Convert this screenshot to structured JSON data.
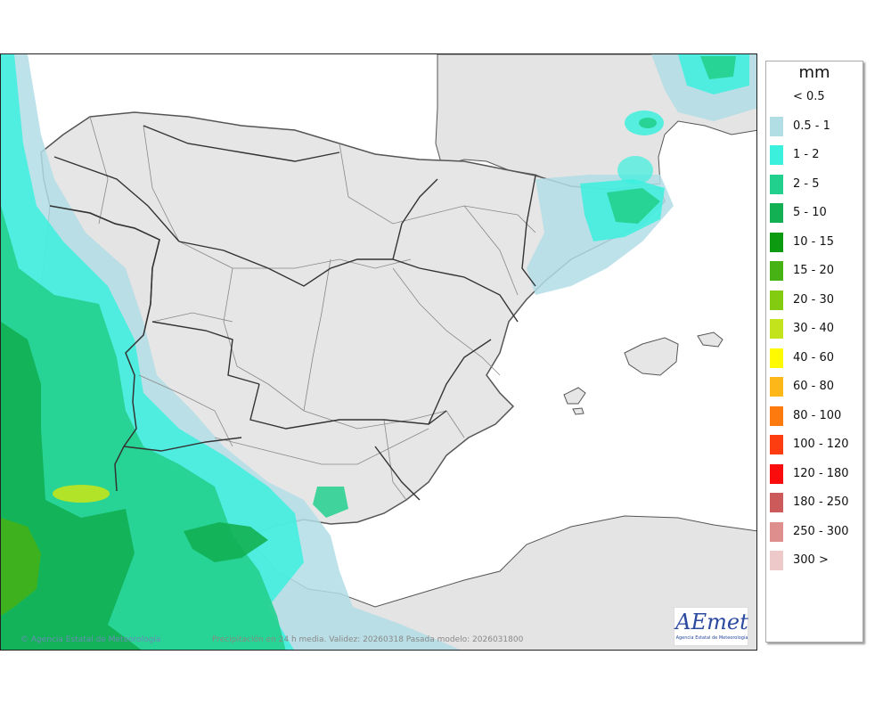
{
  "map": {
    "credit": "© Agencia Estatal de Meteorología",
    "caption": "Precipitación en 24 h media. Validez: 20260318 Pasada modelo: 2026031800",
    "logo": {
      "name": "AEmet",
      "subtitle": "Agencia Estatal de Meteorología"
    },
    "colors": {
      "land": "#e4e4e4",
      "sea": "#ffffff",
      "border": "#555555"
    }
  },
  "legend": {
    "title": "mm",
    "items": [
      {
        "label": "< 0.5",
        "color": ""
      },
      {
        "label": "0.5 - 1",
        "color": "#b1dde5"
      },
      {
        "label": "1 - 2",
        "color": "#3cf0de"
      },
      {
        "label": "2 - 5",
        "color": "#22d08e"
      },
      {
        "label": "5 - 10",
        "color": "#12b052"
      },
      {
        "label": "10 - 15",
        "color": "#0b9a10"
      },
      {
        "label": "15 - 20",
        "color": "#47b214"
      },
      {
        "label": "20 - 30",
        "color": "#82cb11"
      },
      {
        "label": "30 - 40",
        "color": "#c3e41c"
      },
      {
        "label": "40 - 60",
        "color": "#fffa00"
      },
      {
        "label": "60 - 80",
        "color": "#fdb718"
      },
      {
        "label": "80 - 100",
        "color": "#fd7a0e"
      },
      {
        "label": "100 - 120",
        "color": "#fd3d10"
      },
      {
        "label": "120 - 180",
        "color": "#fb0c0c"
      },
      {
        "label": "180 - 250",
        "color": "#cc5a5a"
      },
      {
        "label": "250 - 300",
        "color": "#df8e8e"
      },
      {
        "label": "300 >",
        "color": "#eec9c9"
      }
    ]
  }
}
